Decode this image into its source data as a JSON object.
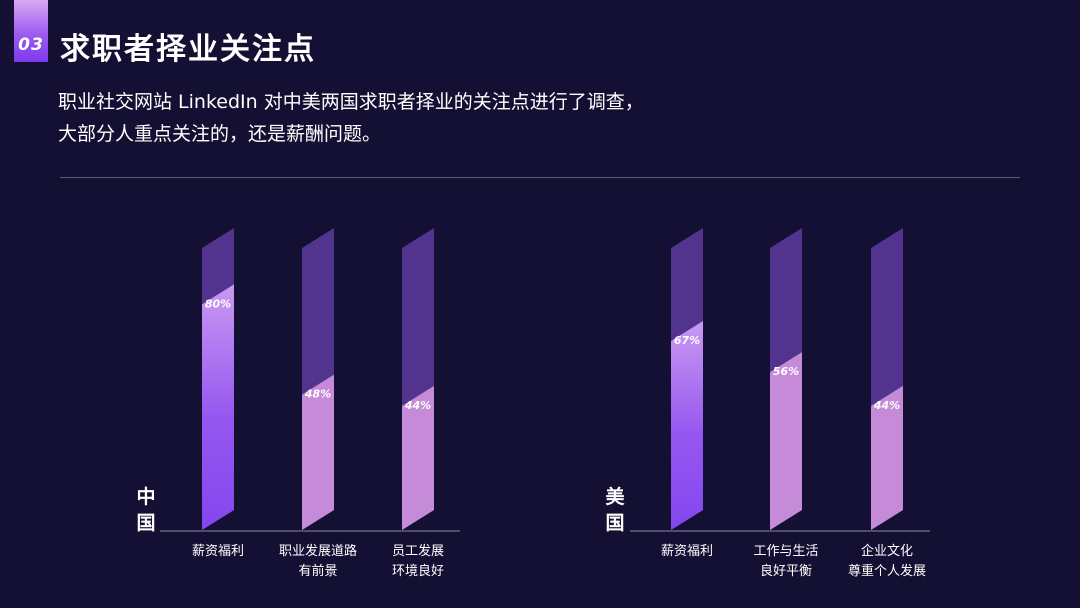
{
  "header": {
    "number": "03",
    "title": "求职者择业关注点"
  },
  "description": {
    "line1": "职业社交网站 LinkedIn 对中美两国求职者择业的关注点进行了调查，",
    "line2": "大部分人重点关注的，还是薪酬问题。"
  },
  "colors": {
    "background": "#141033",
    "bar_track": "#52348f",
    "bar_primary_top": "#c99af0",
    "bar_primary_bottom": "#8447ee",
    "bar_secondary": "#c68bd8"
  },
  "chart_data": [
    {
      "type": "bar",
      "country": "中国",
      "categories": [
        [
          "薪资福利"
        ],
        [
          "职业发展道路",
          "有前景"
        ],
        [
          "员工发展",
          "环境良好"
        ]
      ],
      "values": [
        80,
        48,
        44
      ],
      "value_labels": [
        "80%",
        "48%",
        "44%"
      ],
      "ylim": [
        0,
        100
      ],
      "grid": false
    },
    {
      "type": "bar",
      "country": "美国",
      "categories": [
        [
          "薪资福利"
        ],
        [
          "工作与生活",
          "良好平衡"
        ],
        [
          "企业文化",
          "尊重个人发展"
        ]
      ],
      "values": [
        67,
        56,
        44
      ],
      "value_labels": [
        "67%",
        "56%",
        "44%"
      ],
      "ylim": [
        0,
        100
      ],
      "grid": false
    }
  ]
}
